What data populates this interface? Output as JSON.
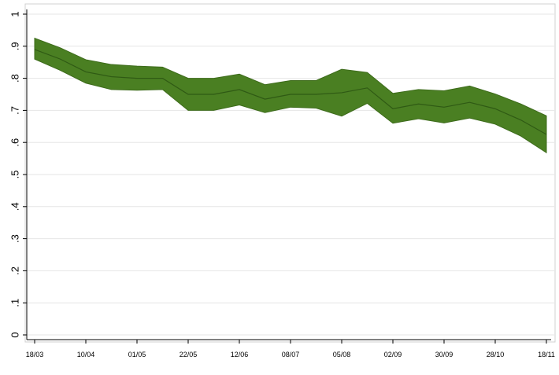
{
  "chart_data": {
    "type": "area",
    "x": [
      "18/03",
      "27/03",
      "10/04",
      "17/04",
      "01/05",
      "15/05",
      "22/05",
      "01/06",
      "12/06",
      "24/06",
      "08/07",
      "22/07",
      "05/08",
      "19/08",
      "02/09",
      "16/09",
      "30/09",
      "14/10",
      "28/10",
      "08/11",
      "18/11"
    ],
    "x_tick_labels": [
      "18/03",
      "10/04",
      "01/05",
      "22/05",
      "12/06",
      "08/07",
      "05/08",
      "02/09",
      "30/09",
      "28/10",
      "18/11"
    ],
    "series": [
      {
        "estimate": [
          0.89,
          0.86,
          0.82,
          0.805,
          0.8,
          0.8,
          0.75,
          0.75,
          0.765,
          0.735,
          0.75,
          0.75,
          0.755,
          0.77,
          0.705,
          0.72,
          0.71,
          0.725,
          0.705,
          0.67,
          0.625
        ],
        "upper": [
          0.925,
          0.895,
          0.858,
          0.843,
          0.838,
          0.835,
          0.8,
          0.8,
          0.813,
          0.78,
          0.793,
          0.793,
          0.828,
          0.818,
          0.753,
          0.765,
          0.761,
          0.776,
          0.751,
          0.72,
          0.683
        ],
        "lower": [
          0.86,
          0.825,
          0.785,
          0.765,
          0.763,
          0.765,
          0.7,
          0.7,
          0.717,
          0.693,
          0.71,
          0.707,
          0.682,
          0.722,
          0.66,
          0.674,
          0.661,
          0.676,
          0.657,
          0.62,
          0.568
        ]
      }
    ],
    "y_ticks": [
      "0",
      ".1",
      ".2",
      ".3",
      ".4",
      ".5",
      ".6",
      ".7",
      ".8",
      ".9",
      "1"
    ],
    "ylim": [
      0,
      1
    ],
    "grid": true,
    "colors": {
      "band_fill": "#4a7f22",
      "band_stroke": "#3d6b1b",
      "estimate_line": "#2f5a14",
      "grid": "#e6e6e6",
      "axis": "#000000"
    }
  }
}
